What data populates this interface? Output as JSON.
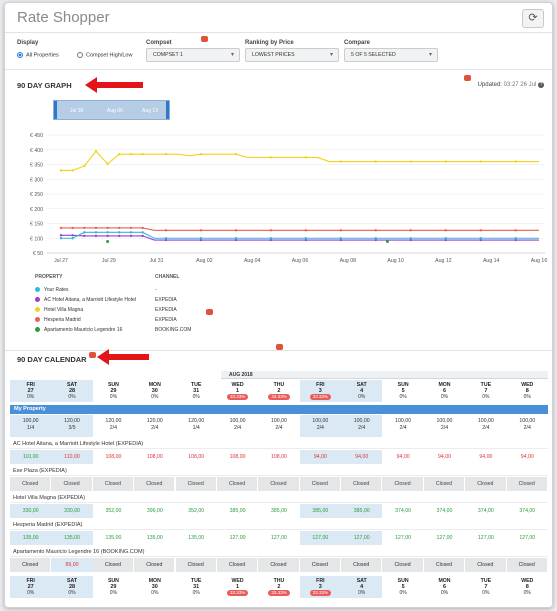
{
  "app": {
    "title": "Rate Shopper"
  },
  "filters": {
    "display_label": "Display",
    "display_options": [
      "All Properties",
      "Compset High/Low"
    ],
    "compset_label": "Compset",
    "compset_value": "COMPSET 1",
    "ranking_label": "Ranking by Price",
    "ranking_value": "LOWEST PRICES",
    "compare_label": "Compare",
    "compare_value": "5 OF 5 SELECTED"
  },
  "graph": {
    "title": "90 DAY GRAPH",
    "updated_label": "Updated:",
    "updated_value": "03:27 26 Jul",
    "help": "?",
    "slider_labels": [
      "Jul 30",
      "Aug 06",
      "Aug 13"
    ]
  },
  "chart_data": {
    "type": "line",
    "ylim": [
      50,
      450
    ],
    "yticks": [
      "€ 450",
      "€ 400",
      "€ 350",
      "€ 300",
      "€ 250",
      "€ 200",
      "€ 150",
      "€ 100",
      "€ 50"
    ],
    "xticks": [
      "Jul 27",
      "Jul 29",
      "Jul 31",
      "Aug 02",
      "Aug 04",
      "Aug 06",
      "Aug 08",
      "Aug 10",
      "Aug 12",
      "Aug 14",
      "Aug 16"
    ],
    "series": [
      {
        "name": "Hotel Villa Magna",
        "color": "#f2d21b",
        "values": [
          330,
          330,
          345,
          395,
          352,
          385,
          385,
          385,
          385,
          385,
          385,
          380,
          385,
          385,
          385,
          385,
          374,
          374,
          374,
          374,
          374,
          374,
          374,
          360,
          360,
          360,
          360,
          360,
          360,
          360,
          360,
          360,
          360,
          360,
          360,
          360,
          360,
          360,
          360,
          360,
          360,
          360
        ]
      },
      {
        "name": "Hesperia Madrid",
        "color": "#e8604f",
        "values": [
          135,
          135,
          135,
          135,
          135,
          135,
          135,
          135,
          127,
          127,
          127,
          127,
          127,
          127,
          127,
          127,
          127,
          127,
          127,
          127,
          127,
          127,
          127,
          127,
          127,
          127,
          127,
          127,
          127,
          127,
          127,
          127,
          127,
          127,
          127,
          127,
          127,
          127,
          127,
          127,
          127,
          127
        ]
      },
      {
        "name": "AC Hotel Aitana, a Marriott Lifestyle Hotel",
        "color": "#9b3fc6",
        "values": [
          110,
          110,
          108,
          108,
          108,
          108,
          108,
          108,
          94,
          94,
          94,
          94,
          94,
          94,
          94,
          94,
          94,
          94,
          94,
          94,
          94,
          94,
          94,
          94,
          94,
          94,
          94,
          94,
          94,
          94,
          94,
          94,
          94,
          94,
          94,
          94,
          94,
          94,
          94,
          94,
          94,
          94
        ]
      },
      {
        "name": "Your Rates",
        "color": "#2fb7e5",
        "values": [
          100,
          100,
          120,
          120,
          120,
          120,
          120,
          120,
          100,
          100,
          100,
          100,
          100,
          100,
          100,
          100,
          100,
          100,
          100,
          100,
          100,
          100,
          100,
          100,
          100,
          100,
          100,
          100,
          100,
          100,
          100,
          100,
          100,
          100,
          100,
          100,
          100,
          100,
          100,
          100,
          100,
          100
        ]
      }
    ],
    "points": {
      "name": "Apartamento Mauricio Legendre 16",
      "color": "#2a9d3f",
      "values": [
        89,
        89
      ]
    }
  },
  "legend": {
    "property_header": "PROPERTY",
    "channel_header": "CHANNEL",
    "items": [
      {
        "name": "Your Rates",
        "channel": "-",
        "color": "#2fb7e5"
      },
      {
        "name": "AC Hotel Aitana, a Marriott Lifestyle Hotel",
        "channel": "EXPEDIA",
        "color": "#9b3fc6"
      },
      {
        "name": "Hotel Villa Magna",
        "channel": "EXPEDIA",
        "color": "#f2d21b"
      },
      {
        "name": "Hesperia Madrid",
        "channel": "EXPEDIA",
        "color": "#e8604f"
      },
      {
        "name": "Apartamento Mauricio Legendre 16",
        "channel": "BOOKING.COM",
        "color": "#2a9d3f"
      }
    ]
  },
  "calendar": {
    "title": "90 DAY CALENDAR",
    "month": "AUG 2018",
    "days": [
      {
        "dn": "FRI",
        "dd": "27",
        "pct": "0%",
        "pill": ""
      },
      {
        "dn": "SAT",
        "dd": "28",
        "pct": "0%",
        "pill": ""
      },
      {
        "dn": "SUN",
        "dd": "29",
        "pct": "0%",
        "pill": ""
      },
      {
        "dn": "MON",
        "dd": "30",
        "pct": "0%",
        "pill": ""
      },
      {
        "dn": "TUE",
        "dd": "31",
        "pct": "0%",
        "pill": ""
      },
      {
        "dn": "WED",
        "dd": "1",
        "pct": "",
        "pill": "33.33%"
      },
      {
        "dn": "THU",
        "dd": "2",
        "pct": "",
        "pill": "33.33%"
      },
      {
        "dn": "FRI",
        "dd": "3",
        "pct": "",
        "pill": "33.33%"
      },
      {
        "dn": "SAT",
        "dd": "4",
        "pct": "0%",
        "pill": ""
      },
      {
        "dn": "SUN",
        "dd": "5",
        "pct": "0%",
        "pill": ""
      },
      {
        "dn": "MON",
        "dd": "6",
        "pct": "0%",
        "pill": ""
      },
      {
        "dn": "TUE",
        "dd": "7",
        "pct": "0%",
        "pill": ""
      },
      {
        "dn": "WED",
        "dd": "8",
        "pct": "0%",
        "pill": ""
      }
    ],
    "my_property_label": "My Property",
    "my_property": [
      [
        "100,00",
        "1/4"
      ],
      [
        "120,00",
        "3/5"
      ],
      [
        "120,00",
        "2/4"
      ],
      [
        "120,00",
        "2/4"
      ],
      [
        "120,00",
        "1/4"
      ],
      [
        "100,00",
        "2/4"
      ],
      [
        "100,00",
        "2/4"
      ],
      [
        "100,00",
        "2/4"
      ],
      [
        "100,00",
        "2/4"
      ],
      [
        "100,00",
        "2/4"
      ],
      [
        "100,00",
        "2/4"
      ],
      [
        "100,00",
        "2/4"
      ],
      [
        "100,00",
        "2/4"
      ]
    ],
    "rows": [
      {
        "label": "AC Hotel Aitana, a Marriott Lifestyle Hotel (EXPEDIA)",
        "values": [
          [
            "110,00",
            "green"
          ],
          [
            "110,00",
            "red"
          ],
          [
            "108,00",
            "red"
          ],
          [
            "108,00",
            "red"
          ],
          [
            "108,00",
            "red"
          ],
          [
            "108,00",
            "red"
          ],
          [
            "108,00",
            "red"
          ],
          [
            "94,00",
            "red"
          ],
          [
            "94,00",
            "red"
          ],
          [
            "94,00",
            "red"
          ],
          [
            "94,00",
            "red"
          ],
          [
            "94,00",
            "red"
          ],
          [
            "94,00",
            "red"
          ]
        ]
      },
      {
        "label": "Exe Plaza (EXPEDIA)",
        "closed": true,
        "values": [
          [
            "Closed",
            ""
          ],
          [
            "Closed",
            ""
          ],
          [
            "Closed",
            ""
          ],
          [
            "Closed",
            ""
          ],
          [
            "Closed",
            ""
          ],
          [
            "Closed",
            ""
          ],
          [
            "Closed",
            ""
          ],
          [
            "Closed",
            ""
          ],
          [
            "Closed",
            ""
          ],
          [
            "Closed",
            ""
          ],
          [
            "Closed",
            ""
          ],
          [
            "Closed",
            ""
          ],
          [
            "Closed",
            ""
          ]
        ]
      },
      {
        "label": "Hotel Villa Magna (EXPEDIA)",
        "values": [
          [
            "330,00",
            "green"
          ],
          [
            "330,00",
            "green"
          ],
          [
            "352,00",
            "green"
          ],
          [
            "396,00",
            "green"
          ],
          [
            "352,00",
            "green"
          ],
          [
            "385,00",
            "green"
          ],
          [
            "385,00",
            "green"
          ],
          [
            "385,00",
            "green"
          ],
          [
            "385,00",
            "green"
          ],
          [
            "374,00",
            "green"
          ],
          [
            "374,00",
            "green"
          ],
          [
            "374,00",
            "green"
          ],
          [
            "374,00",
            "green"
          ]
        ]
      },
      {
        "label": "Hesperia Madrid (EXPEDIA)",
        "values": [
          [
            "135,00",
            "green"
          ],
          [
            "135,00",
            "green"
          ],
          [
            "135,00",
            "green"
          ],
          [
            "135,00",
            "green"
          ],
          [
            "135,00",
            "green"
          ],
          [
            "127,00",
            "green"
          ],
          [
            "127,00",
            "green"
          ],
          [
            "127,00",
            "green"
          ],
          [
            "127,00",
            "green"
          ],
          [
            "127,00",
            "green"
          ],
          [
            "127,00",
            "green"
          ],
          [
            "127,00",
            "green"
          ],
          [
            "127,00",
            "green"
          ]
        ]
      },
      {
        "label": "Apartamento Mauricio Legendre 16 (BOOKING.COM)",
        "mixed": true,
        "values": [
          [
            "Closed",
            ""
          ],
          [
            "89,00",
            "red"
          ],
          [
            "Closed",
            ""
          ],
          [
            "Closed",
            ""
          ],
          [
            "Closed",
            ""
          ],
          [
            "Closed",
            ""
          ],
          [
            "Closed",
            ""
          ],
          [
            "Closed",
            ""
          ],
          [
            "Closed",
            ""
          ],
          [
            "Closed",
            ""
          ],
          [
            "Closed",
            ""
          ],
          [
            "Closed",
            ""
          ],
          [
            "Closed",
            ""
          ]
        ]
      }
    ],
    "footer_days": [
      {
        "dn": "FRI",
        "dd": "27",
        "pct": "0%",
        "pill": ""
      },
      {
        "dn": "SAT",
        "dd": "28",
        "pct": "0%",
        "pill": ""
      },
      {
        "dn": "SUN",
        "dd": "29",
        "pct": "0%",
        "pill": ""
      },
      {
        "dn": "MON",
        "dd": "30",
        "pct": "0%",
        "pill": ""
      },
      {
        "dn": "TUE",
        "dd": "31",
        "pct": "0%",
        "pill": ""
      },
      {
        "dn": "WED",
        "dd": "1",
        "pct": "",
        "pill": "33.33%"
      },
      {
        "dn": "THU",
        "dd": "2",
        "pct": "",
        "pill": "33.33%"
      },
      {
        "dn": "FRI",
        "dd": "3",
        "pct": "",
        "pill": "33.33%"
      },
      {
        "dn": "SAT",
        "dd": "4",
        "pct": "0%",
        "pill": ""
      },
      {
        "dn": "SUN",
        "dd": "5",
        "pct": "0%",
        "pill": ""
      },
      {
        "dn": "MON",
        "dd": "6",
        "pct": "0%",
        "pill": ""
      },
      {
        "dn": "TUE",
        "dd": "7",
        "pct": "0%",
        "pill": ""
      },
      {
        "dn": "WED",
        "dd": "8",
        "pct": "0%",
        "pill": ""
      }
    ]
  }
}
